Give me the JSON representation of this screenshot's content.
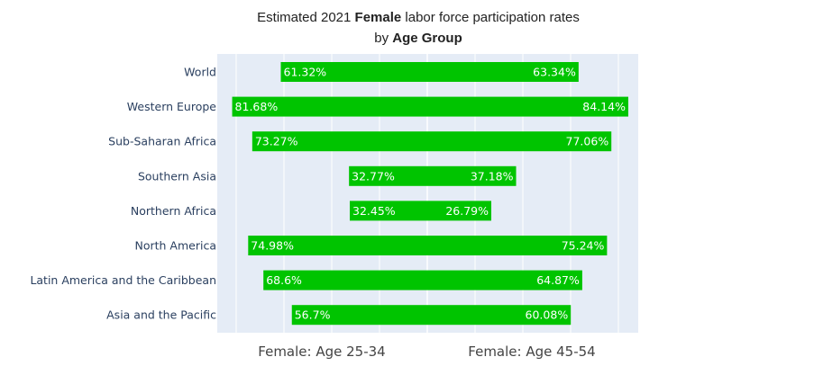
{
  "chart_data": {
    "type": "bar",
    "orientation": "horizontal-butterfly",
    "title": {
      "line1_prefix": "Estimated 2021 ",
      "line1_bold": "Female",
      "line1_suffix": " labor force participation rates",
      "line2_prefix": "by ",
      "line2_bold": "Age Group"
    },
    "categories": [
      "World",
      "Western Europe",
      "Sub-Saharan Africa",
      "Southern Asia",
      "Northern Africa",
      "North America",
      "Latin America and the Caribbean",
      "Asia and the Pacific"
    ],
    "series": [
      {
        "name": "Female: Age 25-34",
        "side": "left",
        "values": [
          61.32,
          81.68,
          73.27,
          32.77,
          32.45,
          74.98,
          68.6,
          56.7
        ],
        "labels": [
          "61.32%",
          "81.68%",
          "73.27%",
          "32.77%",
          "32.45%",
          "74.98%",
          "68.6%",
          "56.7%"
        ]
      },
      {
        "name": "Female: Age 45-54",
        "side": "right",
        "values": [
          63.34,
          84.14,
          77.06,
          37.18,
          26.79,
          75.24,
          64.87,
          60.08
        ],
        "labels": [
          "63.34%",
          "84.14%",
          "77.06%",
          "37.18%",
          "26.79%",
          "75.24%",
          "64.87%",
          "60.08%"
        ]
      }
    ],
    "xlim": [
      -85,
      85
    ],
    "grid": true,
    "colors": {
      "bar": "#00c400",
      "plot_bg": "#e5ecf6",
      "grid": "#ffffff"
    }
  }
}
